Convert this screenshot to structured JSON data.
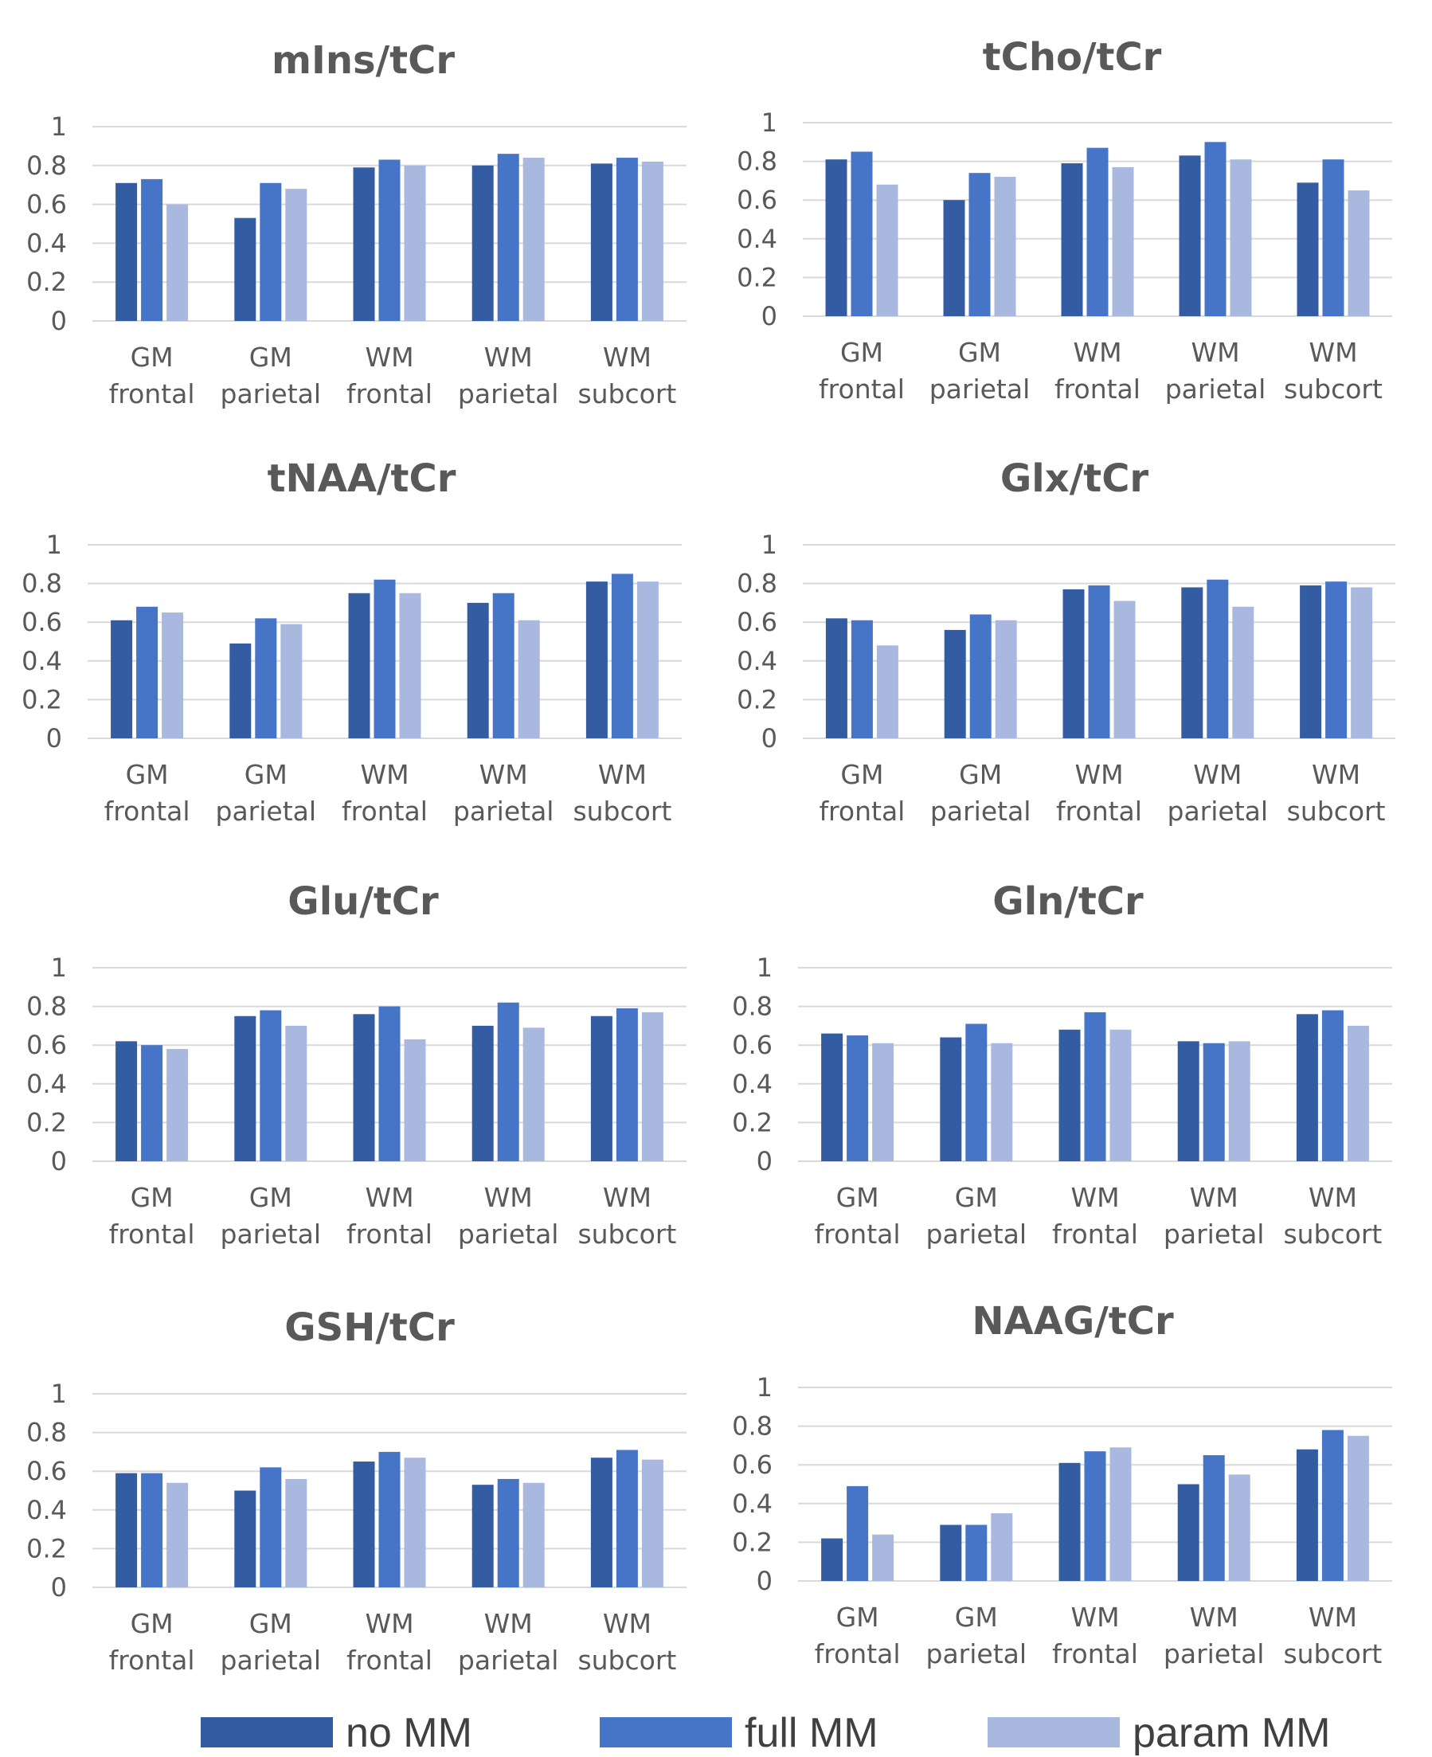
{
  "colors": {
    "no_mm": "#335ca2",
    "full_mm": "#4674c7",
    "param_mm": "#a9b8de",
    "grid": "#d9d9d9",
    "text": "#595959"
  },
  "legend": [
    {
      "label": "no MM",
      "color": "#335ca2"
    },
    {
      "label": "full MM",
      "color": "#4674c7"
    },
    {
      "label": "param MM",
      "color": "#a9b8de"
    }
  ],
  "chart_data": [
    {
      "type": "bar",
      "title": "mIns/tCr",
      "categories": [
        [
          "GM",
          "frontal"
        ],
        [
          "GM",
          "parietal"
        ],
        [
          "WM",
          "frontal"
        ],
        [
          "WM",
          "parietal"
        ],
        [
          "WM",
          "subcort"
        ]
      ],
      "ylim": [
        0,
        1
      ],
      "yticks": [
        "0",
        "0.2",
        "0.4",
        "0.6",
        "0.8",
        "1"
      ],
      "grid": true,
      "series": [
        {
          "name": "no MM",
          "values": [
            0.71,
            0.53,
            0.79,
            0.8,
            0.81
          ]
        },
        {
          "name": "full MM",
          "values": [
            0.73,
            0.71,
            0.83,
            0.86,
            0.84
          ]
        },
        {
          "name": "param MM",
          "values": [
            0.6,
            0.68,
            0.8,
            0.84,
            0.82
          ]
        }
      ]
    },
    {
      "type": "bar",
      "title": "tCho/tCr",
      "categories": [
        [
          "GM",
          "frontal"
        ],
        [
          "GM",
          "parietal"
        ],
        [
          "WM",
          "frontal"
        ],
        [
          "WM",
          "parietal"
        ],
        [
          "WM",
          "subcort"
        ]
      ],
      "ylim": [
        0,
        1
      ],
      "yticks": [
        "0",
        "0.2",
        "0.4",
        "0.6",
        "0.8",
        "1"
      ],
      "grid": true,
      "series": [
        {
          "name": "no MM",
          "values": [
            0.81,
            0.6,
            0.79,
            0.83,
            0.69
          ]
        },
        {
          "name": "full MM",
          "values": [
            0.85,
            0.74,
            0.87,
            0.9,
            0.81
          ]
        },
        {
          "name": "param MM",
          "values": [
            0.68,
            0.72,
            0.77,
            0.81,
            0.65
          ]
        }
      ]
    },
    {
      "type": "bar",
      "title": "tNAA/tCr",
      "categories": [
        [
          "GM",
          "frontal"
        ],
        [
          "GM",
          "parietal"
        ],
        [
          "WM",
          "frontal"
        ],
        [
          "WM",
          "parietal"
        ],
        [
          "WM",
          "subcort"
        ]
      ],
      "ylim": [
        0,
        1
      ],
      "yticks": [
        "0",
        "0.2",
        "0.4",
        "0.6",
        "0.8",
        "1"
      ],
      "grid": true,
      "series": [
        {
          "name": "no MM",
          "values": [
            0.61,
            0.49,
            0.75,
            0.7,
            0.81
          ]
        },
        {
          "name": "full MM",
          "values": [
            0.68,
            0.62,
            0.82,
            0.75,
            0.85
          ]
        },
        {
          "name": "param MM",
          "values": [
            0.65,
            0.59,
            0.75,
            0.61,
            0.81
          ]
        }
      ]
    },
    {
      "type": "bar",
      "title": "Glx/tCr",
      "categories": [
        [
          "GM",
          "frontal"
        ],
        [
          "GM",
          "parietal"
        ],
        [
          "WM",
          "frontal"
        ],
        [
          "WM",
          "parietal"
        ],
        [
          "WM",
          "subcort"
        ]
      ],
      "ylim": [
        0,
        1
      ],
      "yticks": [
        "0",
        "0.2",
        "0.4",
        "0.6",
        "0.8",
        "1"
      ],
      "grid": true,
      "series": [
        {
          "name": "no MM",
          "values": [
            0.62,
            0.56,
            0.77,
            0.78,
            0.79
          ]
        },
        {
          "name": "full MM",
          "values": [
            0.61,
            0.64,
            0.79,
            0.82,
            0.81
          ]
        },
        {
          "name": "param MM",
          "values": [
            0.48,
            0.61,
            0.71,
            0.68,
            0.78
          ]
        }
      ]
    },
    {
      "type": "bar",
      "title": "Glu/tCr",
      "categories": [
        [
          "GM",
          "frontal"
        ],
        [
          "GM",
          "parietal"
        ],
        [
          "WM",
          "frontal"
        ],
        [
          "WM",
          "parietal"
        ],
        [
          "WM",
          "subcort"
        ]
      ],
      "ylim": [
        0,
        1
      ],
      "yticks": [
        "0",
        "0.2",
        "0.4",
        "0.6",
        "0.8",
        "1"
      ],
      "grid": true,
      "series": [
        {
          "name": "no MM",
          "values": [
            0.62,
            0.75,
            0.76,
            0.7,
            0.75
          ]
        },
        {
          "name": "full MM",
          "values": [
            0.6,
            0.78,
            0.8,
            0.82,
            0.79
          ]
        },
        {
          "name": "param MM",
          "values": [
            0.58,
            0.7,
            0.63,
            0.69,
            0.77
          ]
        }
      ]
    },
    {
      "type": "bar",
      "title": "Gln/tCr",
      "categories": [
        [
          "GM",
          "frontal"
        ],
        [
          "GM",
          "parietal"
        ],
        [
          "WM",
          "frontal"
        ],
        [
          "WM",
          "parietal"
        ],
        [
          "WM",
          "subcort"
        ]
      ],
      "ylim": [
        0,
        1
      ],
      "yticks": [
        "0",
        "0.2",
        "0.4",
        "0.6",
        "0.8",
        "1"
      ],
      "grid": true,
      "series": [
        {
          "name": "no MM",
          "values": [
            0.66,
            0.64,
            0.68,
            0.62,
            0.76
          ]
        },
        {
          "name": "full MM",
          "values": [
            0.65,
            0.71,
            0.77,
            0.61,
            0.78
          ]
        },
        {
          "name": "param MM",
          "values": [
            0.61,
            0.61,
            0.68,
            0.62,
            0.7
          ]
        }
      ]
    },
    {
      "type": "bar",
      "title": "GSH/tCr",
      "categories": [
        [
          "GM",
          "frontal"
        ],
        [
          "GM",
          "parietal"
        ],
        [
          "WM",
          "frontal"
        ],
        [
          "WM",
          "parietal"
        ],
        [
          "WM",
          "subcort"
        ]
      ],
      "ylim": [
        0,
        1
      ],
      "yticks": [
        "0",
        "0.2",
        "0.4",
        "0.6",
        "0.8",
        "1"
      ],
      "grid": true,
      "series": [
        {
          "name": "no MM",
          "values": [
            0.59,
            0.5,
            0.65,
            0.53,
            0.67
          ]
        },
        {
          "name": "full MM",
          "values": [
            0.59,
            0.62,
            0.7,
            0.56,
            0.71
          ]
        },
        {
          "name": "param MM",
          "values": [
            0.54,
            0.56,
            0.67,
            0.54,
            0.66
          ]
        }
      ]
    },
    {
      "type": "bar",
      "title": "NAAG/tCr",
      "categories": [
        [
          "GM",
          "frontal"
        ],
        [
          "GM",
          "parietal"
        ],
        [
          "WM",
          "frontal"
        ],
        [
          "WM",
          "parietal"
        ],
        [
          "WM",
          "subcort"
        ]
      ],
      "ylim": [
        0,
        1
      ],
      "yticks": [
        "0",
        "0.2",
        "0.4",
        "0.6",
        "0.8",
        "1"
      ],
      "grid": true,
      "series": [
        {
          "name": "no MM",
          "values": [
            0.22,
            0.29,
            0.61,
            0.5,
            0.68
          ]
        },
        {
          "name": "full MM",
          "values": [
            0.49,
            0.29,
            0.67,
            0.65,
            0.78
          ]
        },
        {
          "name": "param MM",
          "values": [
            0.24,
            0.35,
            0.69,
            0.55,
            0.75
          ]
        }
      ]
    }
  ]
}
